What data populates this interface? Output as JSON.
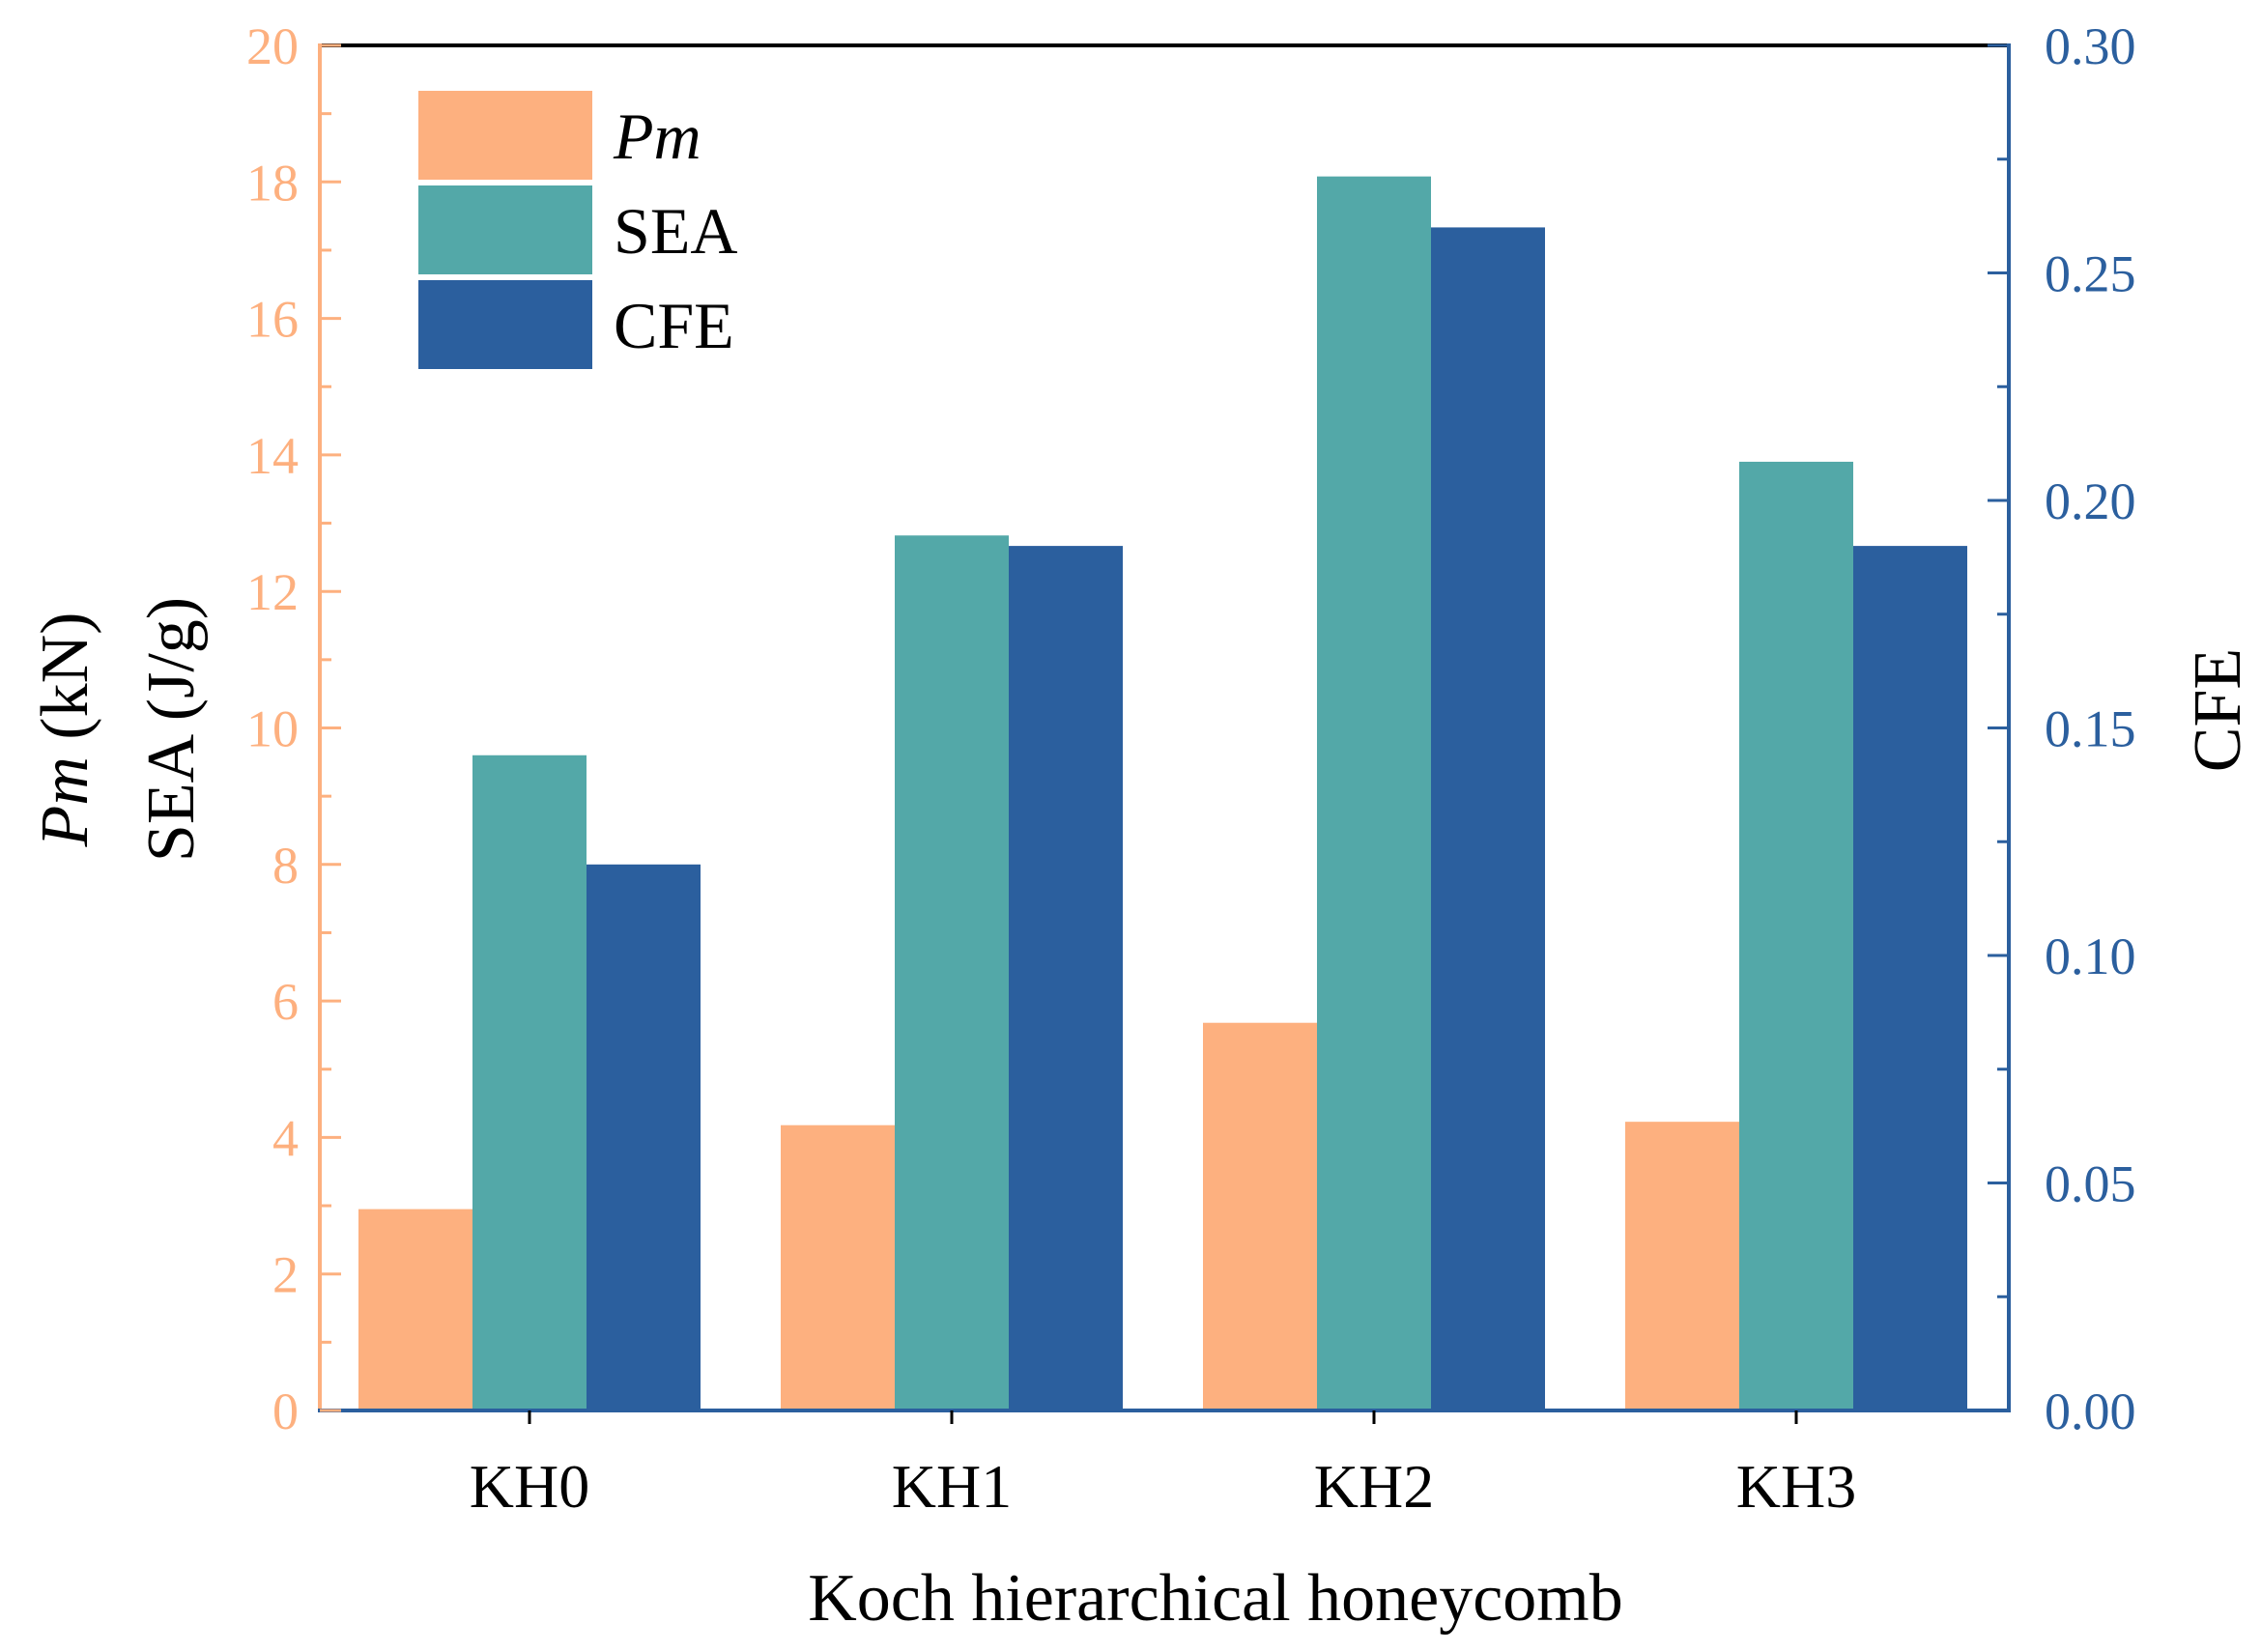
{
  "chart_data": {
    "type": "bar",
    "xlabel": "Koch hierarchical honeycomb",
    "ylabel_left": {
      "pm_label": {
        "italic": "Pm",
        "rest": " (kN)"
      },
      "sea_label": "SEA (J/g)"
    },
    "ylabel_right": "CFE",
    "categories": [
      "KH0",
      "KH1",
      "KH2",
      "KH3"
    ],
    "ylim_left": [
      0,
      20
    ],
    "ylim_right": [
      0,
      0.3
    ],
    "yticks_left": [
      "0",
      "2",
      "4",
      "6",
      "8",
      "10",
      "12",
      "14",
      "16",
      "18",
      "20"
    ],
    "yticks_right": [
      "0.00",
      "0.05",
      "0.10",
      "0.15",
      "0.20",
      "0.25",
      "0.30"
    ],
    "legend_position": "top-left",
    "series": [
      {
        "name": "Pm",
        "italic": true,
        "axis": "left",
        "color": "#FDB07F",
        "values": [
          2.95,
          4.18,
          5.68,
          4.23
        ]
      },
      {
        "name": "SEA",
        "italic": false,
        "axis": "left",
        "color": "#53A8A8",
        "values": [
          9.6,
          12.82,
          18.08,
          13.9
        ]
      },
      {
        "name": "CFE",
        "italic": false,
        "axis": "right",
        "color": "#2B5F9E",
        "values": [
          0.12,
          0.19,
          0.26,
          0.19
        ]
      }
    ],
    "colors": {
      "left_axis": "#FDB07F",
      "right_axis": "#2B5F9E",
      "frame": "#000000"
    }
  }
}
